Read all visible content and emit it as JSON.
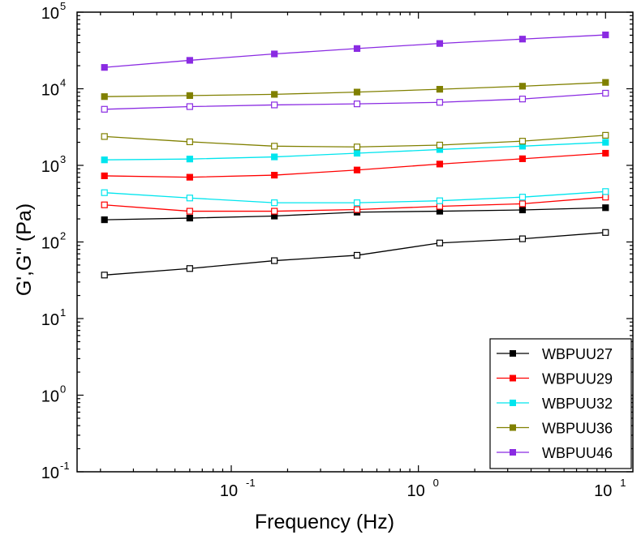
{
  "chart_data": {
    "type": "line",
    "xlabel": "Frequency (Hz)",
    "ylabel": "G',G'' (Pa)",
    "x_scale": "log",
    "y_scale": "log",
    "xlim": [
      0.015,
      14
    ],
    "ylim": [
      0.1,
      100000
    ],
    "x_ticks": [
      {
        "value": 0.1,
        "base": "10",
        "exp": "-1"
      },
      {
        "value": 1,
        "base": "10",
        "exp": "0"
      },
      {
        "value": 10,
        "base": "10",
        "exp": "1"
      }
    ],
    "y_ticks": [
      {
        "value": 0.1,
        "base": "10",
        "exp": "-1"
      },
      {
        "value": 1,
        "base": "10",
        "exp": "0"
      },
      {
        "value": 10,
        "base": "10",
        "exp": "1"
      },
      {
        "value": 100,
        "base": "10",
        "exp": "2"
      },
      {
        "value": 1000,
        "base": "10",
        "exp": "3"
      },
      {
        "value": 10000,
        "base": "10",
        "exp": "4"
      },
      {
        "value": 100000,
        "base": "10",
        "exp": "5"
      }
    ],
    "legend_position": "bottom-right",
    "x": [
      0.021,
      0.06,
      0.17,
      0.47,
      1.3,
      3.6,
      10
    ],
    "series": [
      {
        "name": "WBPUU27",
        "color": "#000000",
        "filled": true,
        "values": [
          195,
          205,
          218,
          245,
          252,
          262,
          280
        ]
      },
      {
        "name": "",
        "color": "#000000",
        "filled": false,
        "values": [
          37,
          45,
          57,
          67,
          97,
          110,
          133
        ]
      },
      {
        "name": "WBPUU29",
        "color": "#ff0000",
        "filled": true,
        "values": [
          730,
          700,
          745,
          870,
          1040,
          1220,
          1440
        ]
      },
      {
        "name": "",
        "color": "#ff0000",
        "filled": false,
        "values": [
          305,
          252,
          252,
          265,
          292,
          315,
          385
        ]
      },
      {
        "name": "WBPUU32",
        "color": "#00e5ee",
        "filled": true,
        "values": [
          1180,
          1210,
          1290,
          1440,
          1610,
          1780,
          2000
        ]
      },
      {
        "name": "",
        "color": "#00e5ee",
        "filled": false,
        "values": [
          440,
          375,
          325,
          325,
          345,
          385,
          455
        ]
      },
      {
        "name": "WBPUU36",
        "color": "#808000",
        "filled": true,
        "values": [
          7900,
          8150,
          8450,
          9050,
          9850,
          10800,
          12100
        ]
      },
      {
        "name": "",
        "color": "#808000",
        "filled": false,
        "values": [
          2380,
          2030,
          1780,
          1740,
          1840,
          2070,
          2470
        ]
      },
      {
        "name": "WBPUU46",
        "color": "#8a2be2",
        "filled": true,
        "values": [
          19000,
          23500,
          28500,
          33500,
          39000,
          44500,
          50500
        ]
      },
      {
        "name": "",
        "color": "#8a2be2",
        "filled": false,
        "values": [
          5400,
          5850,
          6150,
          6350,
          6650,
          7350,
          8750
        ]
      }
    ]
  }
}
